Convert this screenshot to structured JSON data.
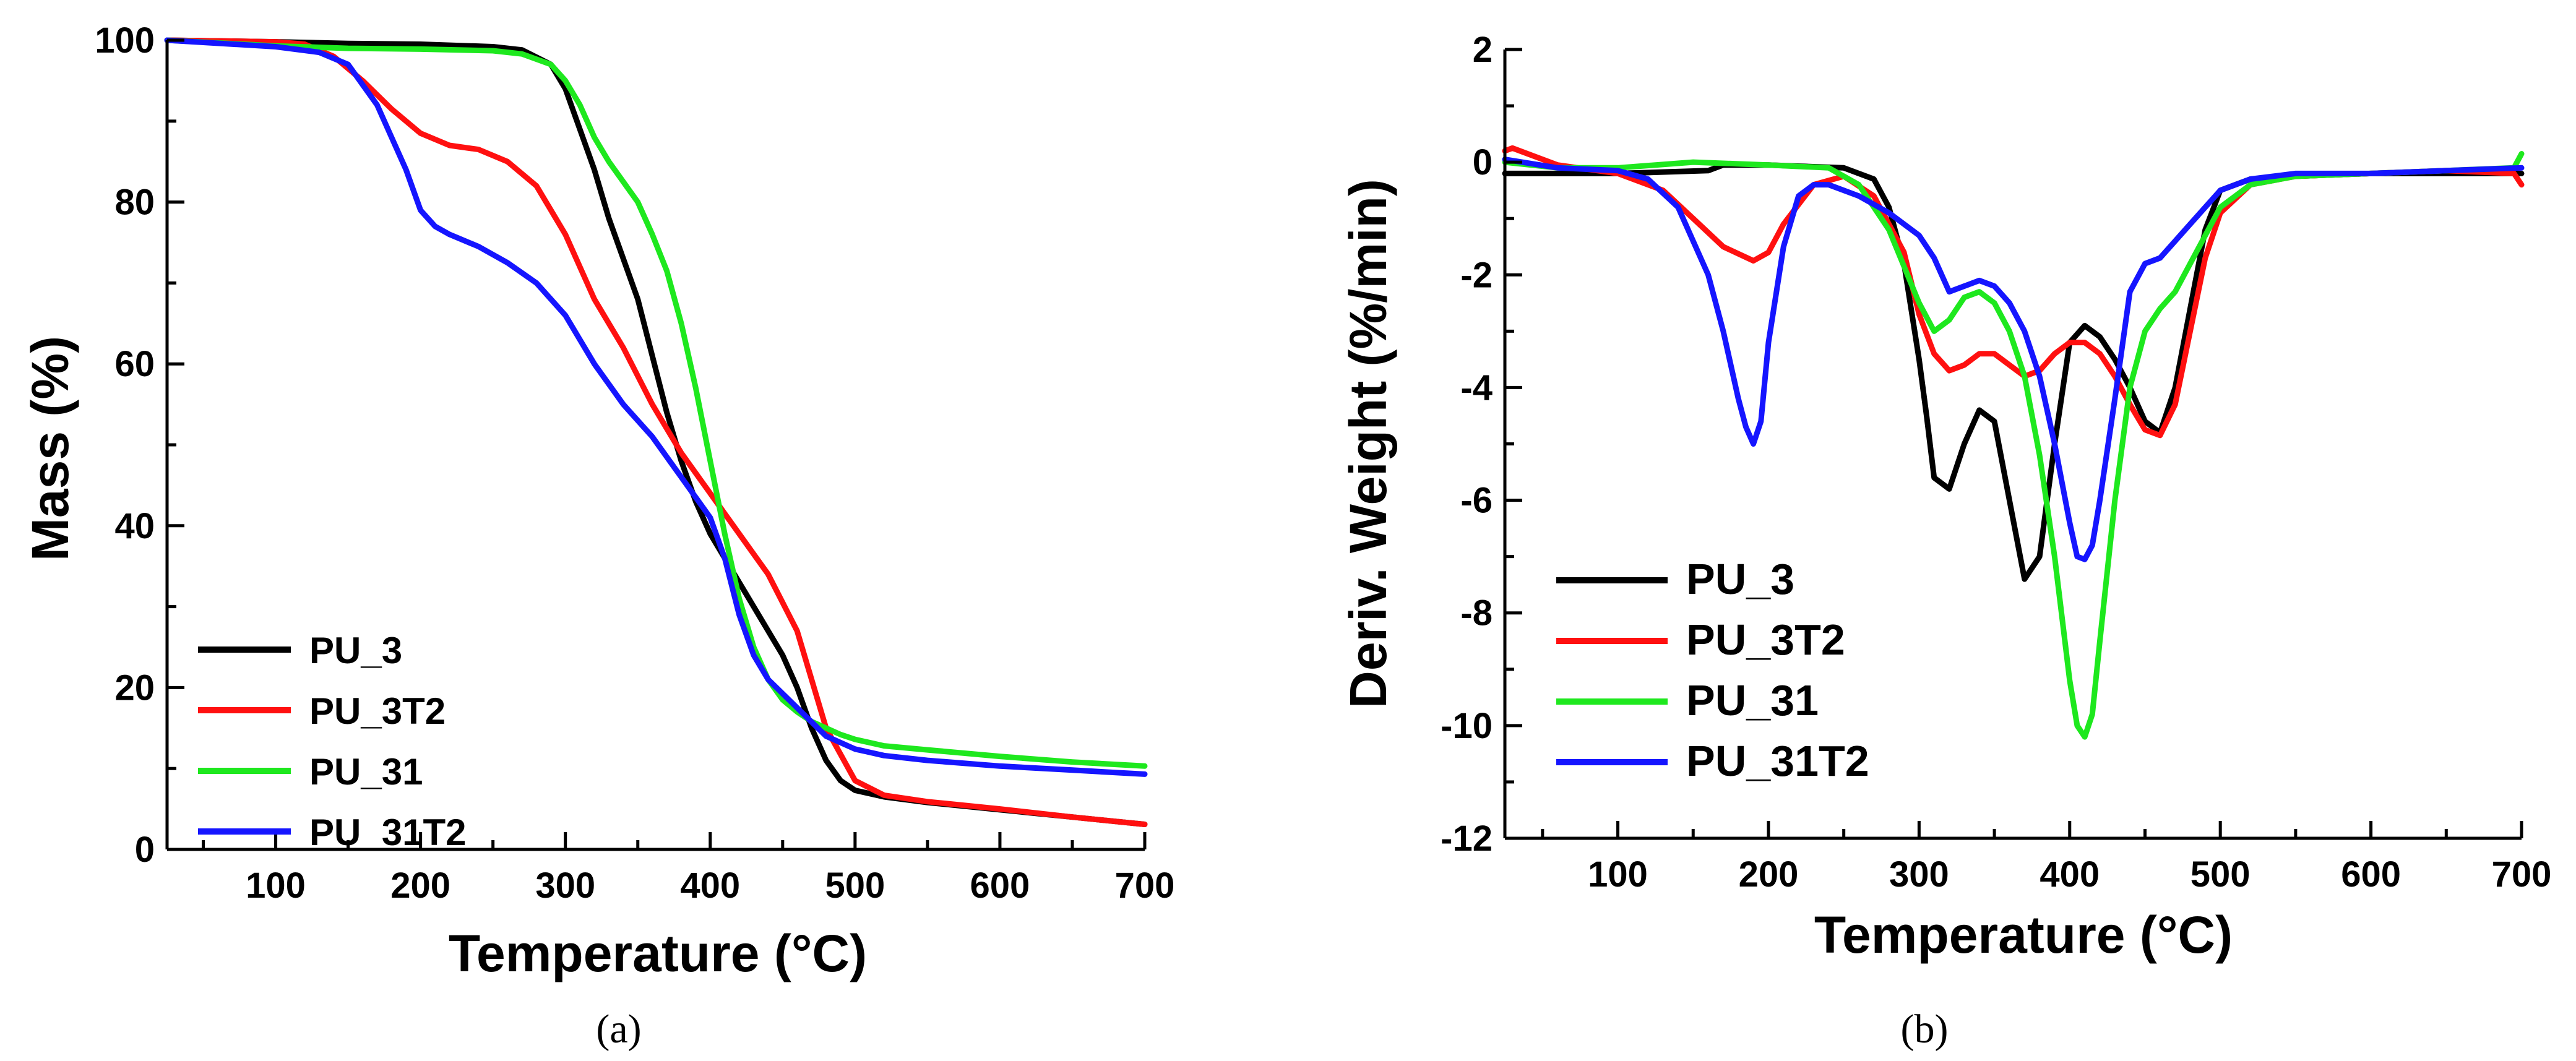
{
  "chart_data": [
    {
      "type": "line",
      "caption": "(a)",
      "xlabel": "Temperature (°C)",
      "ylabel": "Mass (%)",
      "xlim": [
        25,
        700
      ],
      "ylim": [
        0,
        100
      ],
      "xticks": [
        100,
        200,
        300,
        400,
        500,
        600,
        700
      ],
      "yticks": [
        0,
        20,
        40,
        60,
        80,
        100
      ],
      "legend_position": "bottom-left",
      "series": [
        {
          "name": "PU_3",
          "color": "#000000",
          "x": [
            25,
            100,
            150,
            200,
            250,
            270,
            290,
            300,
            310,
            320,
            330,
            340,
            350,
            360,
            370,
            380,
            390,
            400,
            410,
            420,
            430,
            440,
            450,
            460,
            470,
            480,
            490,
            500,
            520,
            550,
            600,
            650,
            700
          ],
          "y": [
            100,
            99.8,
            99.6,
            99.5,
            99.2,
            98.8,
            97,
            94,
            89,
            84,
            78,
            73,
            68,
            61,
            54,
            48,
            43,
            39,
            36,
            33,
            30,
            27,
            24,
            20,
            15,
            11,
            8.5,
            7.3,
            6.5,
            5.8,
            4.9,
            4.0,
            3.1
          ]
        },
        {
          "name": "PU_3T2",
          "color": "#ff1010",
          "x": [
            25,
            100,
            120,
            140,
            160,
            180,
            200,
            220,
            240,
            260,
            280,
            300,
            320,
            340,
            360,
            380,
            400,
            420,
            440,
            460,
            480,
            500,
            520,
            550,
            600,
            650,
            700
          ],
          "y": [
            100,
            99.8,
            99.5,
            98,
            95,
            91.5,
            88.5,
            87,
            86.5,
            85,
            82,
            76,
            68,
            62,
            55,
            49,
            44,
            39,
            34,
            27,
            15,
            8.5,
            6.7,
            5.9,
            5.0,
            4.0,
            3.1
          ]
        },
        {
          "name": "PU_31",
          "color": "#1ee81e",
          "x": [
            25,
            100,
            150,
            200,
            250,
            270,
            290,
            300,
            310,
            320,
            330,
            340,
            350,
            360,
            370,
            380,
            390,
            400,
            410,
            420,
            430,
            440,
            450,
            460,
            470,
            480,
            490,
            500,
            520,
            550,
            600,
            650,
            700
          ],
          "y": [
            100,
            99.3,
            99,
            98.9,
            98.7,
            98.3,
            97,
            95,
            92,
            88,
            85,
            82.5,
            80,
            76,
            71.5,
            65,
            57,
            48,
            39,
            31,
            25,
            21,
            18.5,
            17,
            15.8,
            15,
            14.2,
            13.6,
            12.8,
            12.3,
            11.5,
            10.8,
            10.3
          ]
        },
        {
          "name": "PU_31T2",
          "color": "#1515ff",
          "x": [
            25,
            100,
            130,
            150,
            170,
            190,
            200,
            210,
            220,
            240,
            260,
            280,
            300,
            320,
            340,
            360,
            380,
            400,
            410,
            420,
            430,
            440,
            460,
            480,
            500,
            520,
            550,
            600,
            650,
            700
          ],
          "y": [
            100,
            99.2,
            98.5,
            97,
            92,
            84,
            79,
            77,
            76,
            74.5,
            72.5,
            70,
            66,
            60,
            55,
            51,
            46,
            41,
            36,
            29,
            24,
            21,
            17.5,
            14,
            12.4,
            11.6,
            11,
            10.3,
            9.8,
            9.3
          ]
        }
      ]
    },
    {
      "type": "line",
      "caption": "(b)",
      "xlabel": "Temperature (°C)",
      "ylabel": "Deriv. Weight (%/min)",
      "xlim": [
        25,
        700
      ],
      "ylim": [
        -12,
        2
      ],
      "xticks": [
        100,
        200,
        300,
        400,
        500,
        600,
        700
      ],
      "yticks": [
        -12,
        -10,
        -8,
        -6,
        -4,
        -2,
        0,
        2
      ],
      "legend_position": "bottom-left",
      "series": [
        {
          "name": "PU_3",
          "color": "#000000",
          "x": [
            25,
            100,
            160,
            170,
            200,
            250,
            270,
            280,
            290,
            300,
            305,
            310,
            320,
            330,
            340,
            350,
            360,
            370,
            380,
            390,
            400,
            410,
            420,
            430,
            440,
            450,
            460,
            470,
            480,
            490,
            500,
            520,
            550,
            600,
            650,
            700
          ],
          "y": [
            -0.2,
            -0.2,
            -0.15,
            -0.05,
            -0.05,
            -0.1,
            -0.3,
            -0.8,
            -1.8,
            -3.5,
            -4.5,
            -5.6,
            -5.8,
            -5.0,
            -4.4,
            -4.6,
            -6.0,
            -7.4,
            -7.0,
            -5.0,
            -3.2,
            -2.9,
            -3.1,
            -3.5,
            -4.0,
            -4.6,
            -4.8,
            -4.0,
            -2.6,
            -1.2,
            -0.5,
            -0.3,
            -0.25,
            -0.2,
            -0.2,
            -0.2
          ]
        },
        {
          "name": "PU_3T2",
          "color": "#ff1010",
          "x": [
            25,
            30,
            60,
            100,
            130,
            150,
            170,
            190,
            200,
            210,
            230,
            250,
            270,
            290,
            300,
            310,
            320,
            330,
            340,
            350,
            360,
            370,
            380,
            390,
            400,
            410,
            420,
            430,
            440,
            450,
            460,
            470,
            480,
            490,
            500,
            520,
            550,
            600,
            650,
            695,
            700
          ],
          "y": [
            0.2,
            0.25,
            -0.05,
            -0.2,
            -0.5,
            -1.0,
            -1.5,
            -1.75,
            -1.6,
            -1.1,
            -0.4,
            -0.25,
            -0.6,
            -1.6,
            -2.7,
            -3.4,
            -3.7,
            -3.6,
            -3.4,
            -3.4,
            -3.6,
            -3.8,
            -3.7,
            -3.4,
            -3.2,
            -3.2,
            -3.4,
            -3.8,
            -4.3,
            -4.75,
            -4.85,
            -4.3,
            -3.0,
            -1.7,
            -0.9,
            -0.4,
            -0.25,
            -0.2,
            -0.15,
            -0.2,
            -0.4
          ]
        },
        {
          "name": "PU_31",
          "color": "#1ee81e",
          "x": [
            25,
            60,
            100,
            150,
            200,
            240,
            260,
            280,
            300,
            310,
            320,
            330,
            340,
            350,
            360,
            370,
            380,
            390,
            400,
            405,
            410,
            415,
            420,
            430,
            440,
            450,
            460,
            470,
            480,
            500,
            520,
            550,
            600,
            650,
            695,
            700
          ],
          "y": [
            0,
            -0.1,
            -0.1,
            0,
            -0.05,
            -0.1,
            -0.4,
            -1.2,
            -2.5,
            -3.0,
            -2.8,
            -2.4,
            -2.3,
            -2.5,
            -3.0,
            -3.8,
            -5.2,
            -7.0,
            -9.2,
            -10.0,
            -10.2,
            -9.8,
            -8.5,
            -6.0,
            -4.0,
            -3.0,
            -2.6,
            -2.3,
            -1.8,
            -0.8,
            -0.4,
            -0.25,
            -0.2,
            -0.15,
            -0.1,
            0.15
          ]
        },
        {
          "name": "PU_31T2",
          "color": "#1515ff",
          "x": [
            25,
            60,
            100,
            120,
            140,
            160,
            170,
            180,
            185,
            190,
            195,
            200,
            210,
            220,
            230,
            240,
            260,
            280,
            300,
            310,
            320,
            330,
            340,
            350,
            360,
            370,
            380,
            390,
            400,
            405,
            410,
            415,
            420,
            430,
            440,
            450,
            460,
            480,
            500,
            520,
            550,
            600,
            650,
            700
          ],
          "y": [
            0.05,
            -0.1,
            -0.15,
            -0.3,
            -0.8,
            -2.0,
            -3.0,
            -4.2,
            -4.7,
            -5.0,
            -4.6,
            -3.2,
            -1.5,
            -0.6,
            -0.4,
            -0.4,
            -0.6,
            -0.9,
            -1.3,
            -1.7,
            -2.3,
            -2.2,
            -2.1,
            -2.2,
            -2.5,
            -3.0,
            -3.8,
            -5.0,
            -6.4,
            -7.0,
            -7.05,
            -6.8,
            -6.0,
            -4.2,
            -2.3,
            -1.8,
            -1.7,
            -1.1,
            -0.5,
            -0.3,
            -0.2,
            -0.2,
            -0.15,
            -0.1
          ]
        }
      ]
    }
  ]
}
